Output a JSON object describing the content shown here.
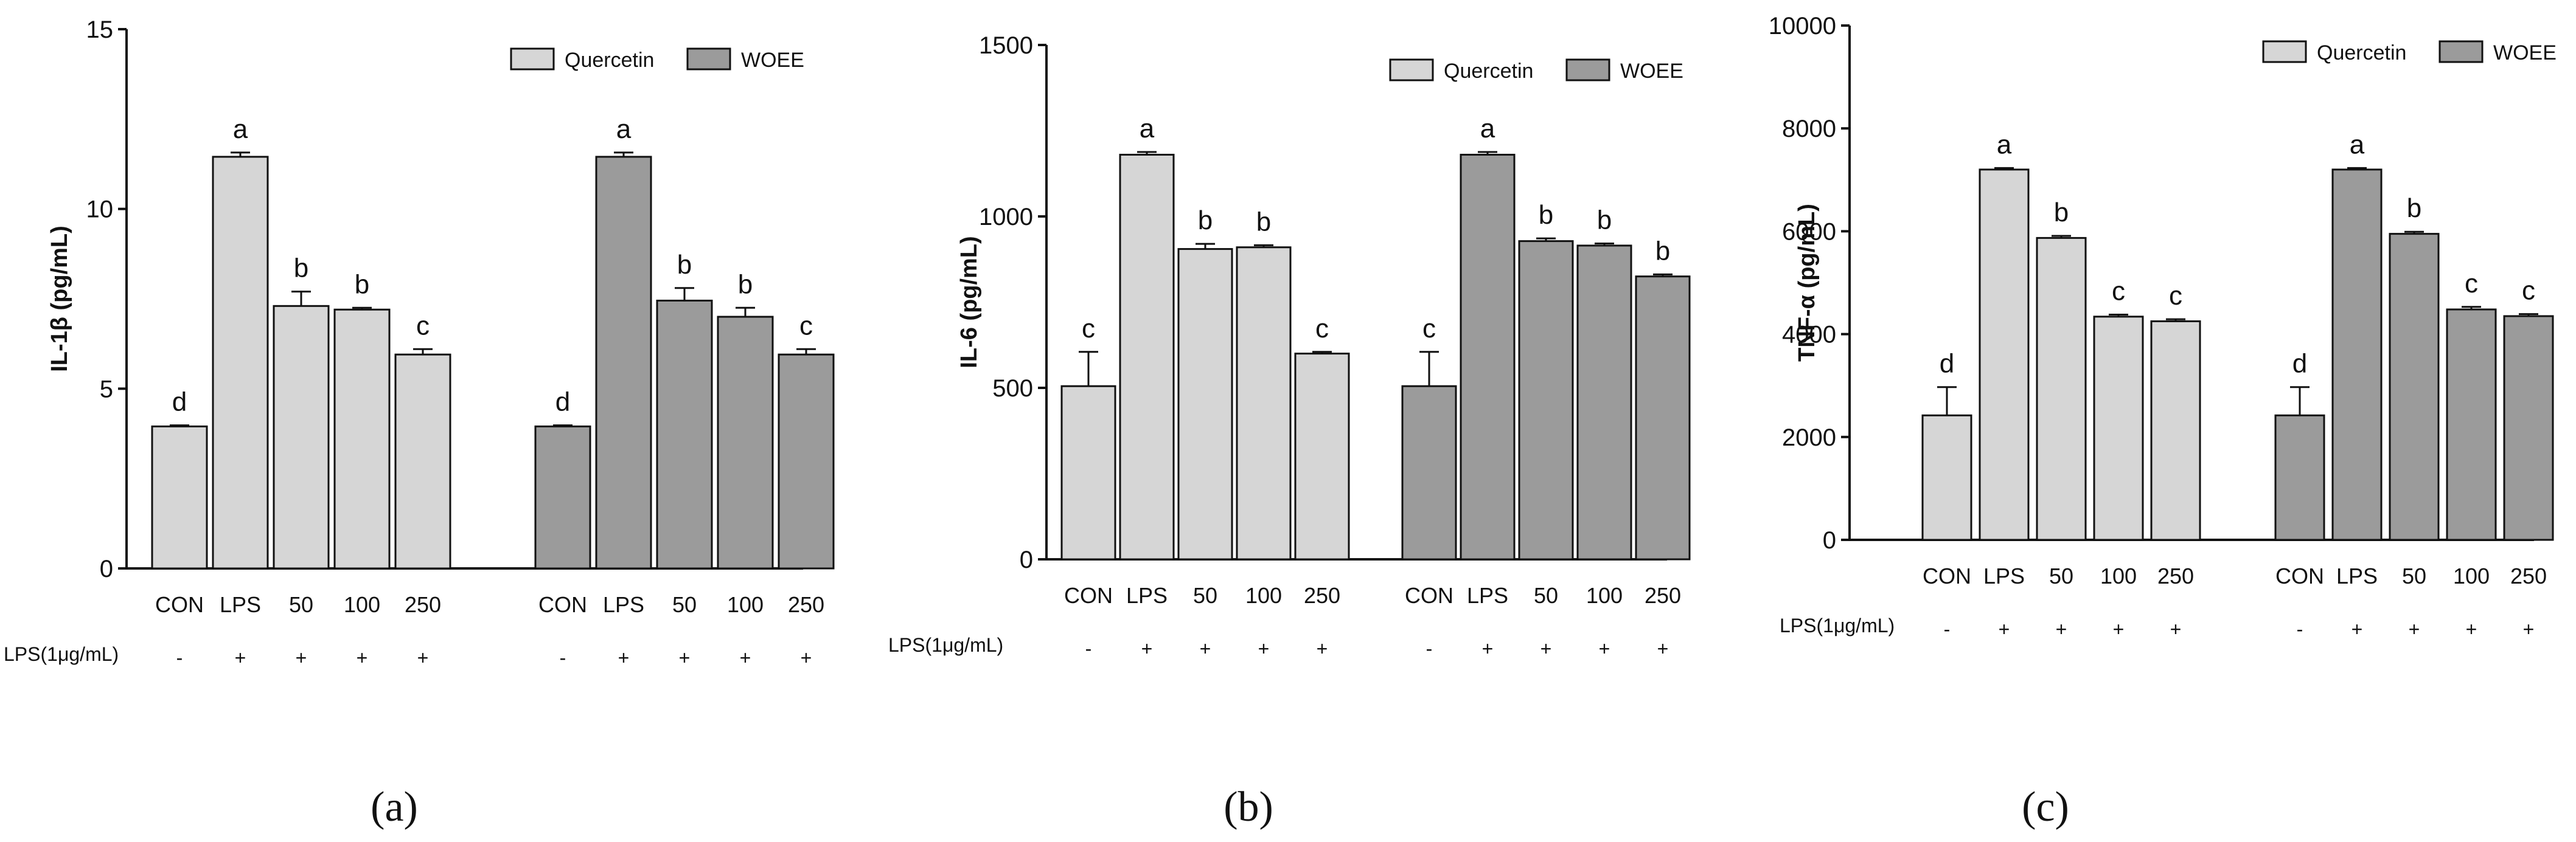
{
  "colors": {
    "quercetin": "#d6d6d6",
    "woee": "#9b9b9b"
  },
  "chart_data": [
    {
      "type": "bar",
      "panel_label": "(a)",
      "ylabel": "IL-1β (pg/mL)",
      "ylim": [
        0,
        15
      ],
      "yticks": [
        "0",
        "5",
        "10",
        "15"
      ],
      "categories": [
        "CON",
        "LPS",
        "50",
        "100",
        "250"
      ],
      "lps_row_label": "LPS(1μg/mL)",
      "lps_row": [
        "-",
        "+",
        "+",
        "+",
        "+"
      ],
      "legend": [
        "Quercetin",
        "WOEE"
      ],
      "series": [
        {
          "name": "Quercetin",
          "values": [
            3.95,
            11.45,
            7.3,
            7.2,
            5.95
          ],
          "errors": [
            0.03,
            0.12,
            0.4,
            0.05,
            0.15
          ],
          "letters": [
            "d",
            "a",
            "b",
            "b",
            "c"
          ]
        },
        {
          "name": "WOEE",
          "values": [
            3.95,
            11.45,
            7.45,
            7.0,
            5.95
          ],
          "errors": [
            0.03,
            0.12,
            0.35,
            0.25,
            0.15
          ],
          "letters": [
            "d",
            "a",
            "b",
            "b",
            "c"
          ]
        }
      ]
    },
    {
      "type": "bar",
      "panel_label": "(b)",
      "ylabel": "IL-6 (pg/mL)",
      "ylim": [
        0,
        1500
      ],
      "yticks": [
        "0",
        "500",
        "1000",
        "1500"
      ],
      "categories": [
        "CON",
        "LPS",
        "50",
        "100",
        "250"
      ],
      "lps_row_label": "LPS(1μg/mL)",
      "lps_row": [
        "-",
        "+",
        "+",
        "+",
        "+"
      ],
      "legend": [
        "Quercetin",
        "WOEE"
      ],
      "series": [
        {
          "name": "Quercetin",
          "values": [
            505,
            1180,
            905,
            910,
            600
          ],
          "errors": [
            100,
            8,
            15,
            6,
            5
          ],
          "letters": [
            "c",
            "a",
            "b",
            "b",
            "c"
          ]
        },
        {
          "name": "WOEE",
          "values": [
            505,
            1180,
            928,
            915,
            825
          ],
          "errors": [
            100,
            8,
            8,
            6,
            6
          ],
          "letters": [
            "c",
            "a",
            "b",
            "b",
            "b"
          ]
        }
      ]
    },
    {
      "type": "bar",
      "panel_label": "(c)",
      "ylabel": "TNF-α (pg/mL)",
      "ylim": [
        0,
        10000
      ],
      "yticks": [
        "0",
        "2000",
        "4000",
        "6000",
        "8000",
        "10000"
      ],
      "categories": [
        "CON",
        "LPS",
        "50",
        "100",
        "250"
      ],
      "lps_row_label": "LPS(1μg/mL)",
      "lps_row": [
        "-",
        "+",
        "+",
        "+",
        "+"
      ],
      "legend": [
        "Quercetin",
        "WOEE"
      ],
      "series": [
        {
          "name": "Quercetin",
          "values": [
            2420,
            7200,
            5870,
            4340,
            4250
          ],
          "errors": [
            550,
            30,
            40,
            40,
            40
          ],
          "letters": [
            "d",
            "a",
            "b",
            "c",
            "c"
          ]
        },
        {
          "name": "WOEE",
          "values": [
            2420,
            7200,
            5950,
            4480,
            4350
          ],
          "errors": [
            550,
            30,
            40,
            50,
            40
          ],
          "letters": [
            "d",
            "a",
            "b",
            "c",
            "c"
          ]
        }
      ]
    }
  ]
}
